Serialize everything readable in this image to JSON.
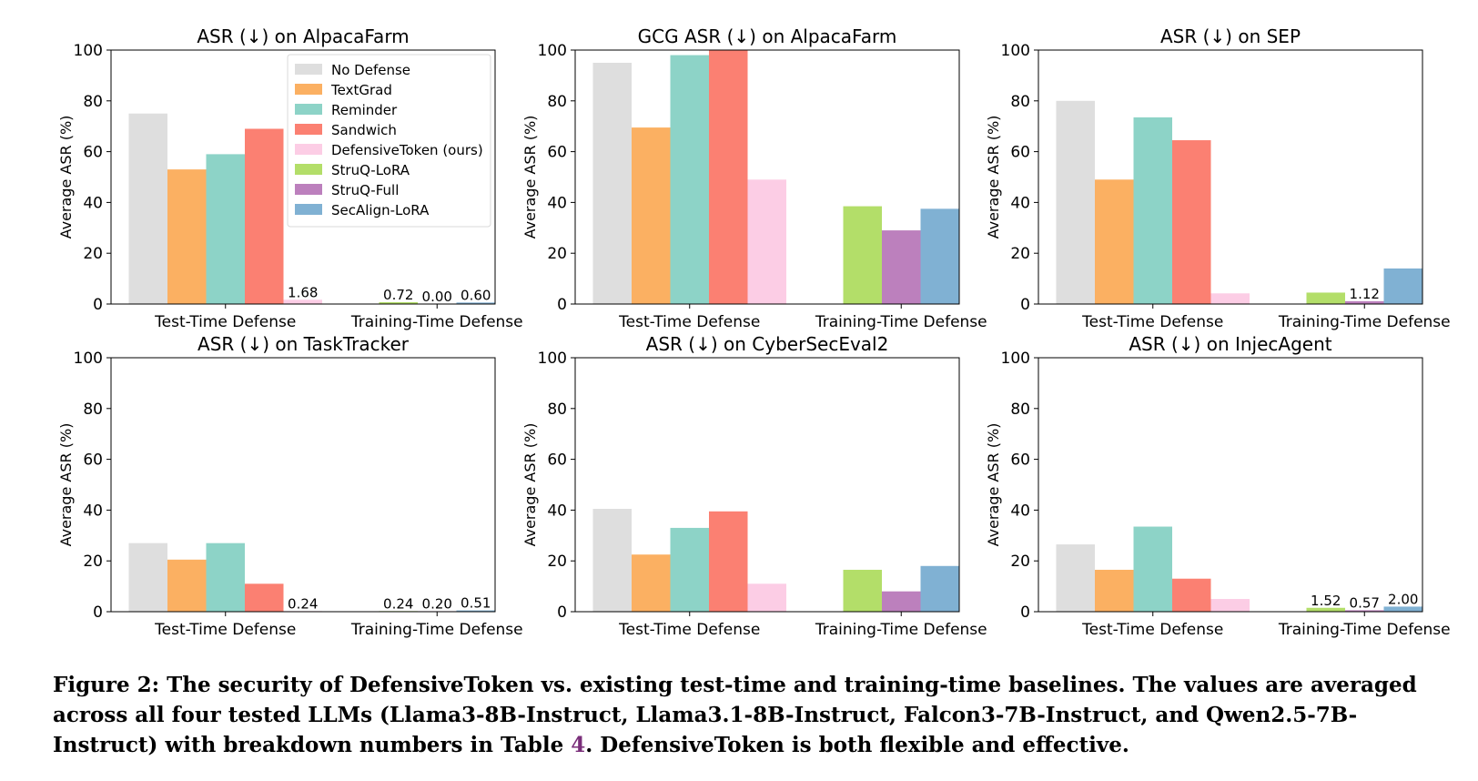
{
  "chart_data": [
    {
      "type": "bar",
      "title": "ASR (↓) on AlpacaFarm",
      "ylabel": "Average ASR (%)",
      "ylim": [
        0,
        100
      ],
      "yticks": [
        "0",
        "20",
        "40",
        "60",
        "80",
        "100"
      ],
      "groups": [
        {
          "label": "Test-Time Defense",
          "bars": [
            {
              "series": "No Defense",
              "value": 75
            },
            {
              "series": "TextGrad",
              "value": 53
            },
            {
              "series": "Reminder",
              "value": 59
            },
            {
              "series": "Sandwich",
              "value": 69
            },
            {
              "series": "DefensiveToken (ours)",
              "value": 1.68,
              "label": "1.68"
            }
          ]
        },
        {
          "label": "Training-Time Defense",
          "bars": [
            {
              "series": "StruQ-LoRA",
              "value": 0.72,
              "label": "0.72"
            },
            {
              "series": "StruQ-Full",
              "value": 0.0,
              "label": "0.00"
            },
            {
              "series": "SecAlign-LoRA",
              "value": 0.6,
              "label": "0.60"
            }
          ]
        }
      ],
      "legend": {
        "placement": "top-right",
        "entries": [
          "No Defense",
          "TextGrad",
          "Reminder",
          "Sandwich",
          "DefensiveToken (ours)",
          "StruQ-LoRA",
          "StruQ-Full",
          "SecAlign-LoRA"
        ]
      }
    },
    {
      "type": "bar",
      "title": "GCG ASR (↓) on AlpacaFarm",
      "ylabel": "Average ASR (%)",
      "ylim": [
        0,
        100
      ],
      "yticks": [
        "0",
        "20",
        "40",
        "60",
        "80",
        "100"
      ],
      "groups": [
        {
          "label": "Test-Time Defense",
          "bars": [
            {
              "series": "No Defense",
              "value": 95
            },
            {
              "series": "TextGrad",
              "value": 69.5
            },
            {
              "series": "Reminder",
              "value": 98
            },
            {
              "series": "Sandwich",
              "value": 100
            },
            {
              "series": "DefensiveToken (ours)",
              "value": 49
            }
          ]
        },
        {
          "label": "Training-Time Defense",
          "bars": [
            {
              "series": "StruQ-LoRA",
              "value": 38.5
            },
            {
              "series": "StruQ-Full",
              "value": 29
            },
            {
              "series": "SecAlign-LoRA",
              "value": 37.5
            }
          ]
        }
      ]
    },
    {
      "type": "bar",
      "title": "ASR (↓) on SEP",
      "ylabel": "Average ASR (%)",
      "ylim": [
        0,
        100
      ],
      "yticks": [
        "0",
        "20",
        "40",
        "60",
        "80",
        "100"
      ],
      "groups": [
        {
          "label": "Test-Time Defense",
          "bars": [
            {
              "series": "No Defense",
              "value": 80
            },
            {
              "series": "TextGrad",
              "value": 49
            },
            {
              "series": "Reminder",
              "value": 73.5
            },
            {
              "series": "Sandwich",
              "value": 64.5
            },
            {
              "series": "DefensiveToken (ours)",
              "value": 4.2
            }
          ]
        },
        {
          "label": "Training-Time Defense",
          "bars": [
            {
              "series": "StruQ-LoRA",
              "value": 4.5
            },
            {
              "series": "StruQ-Full",
              "value": 1.12,
              "label": "1.12"
            },
            {
              "series": "SecAlign-LoRA",
              "value": 14
            }
          ]
        }
      ]
    },
    {
      "type": "bar",
      "title": "ASR (↓) on TaskTracker",
      "ylabel": "Average ASR (%)",
      "ylim": [
        0,
        100
      ],
      "yticks": [
        "0",
        "20",
        "40",
        "60",
        "80",
        "100"
      ],
      "groups": [
        {
          "label": "Test-Time Defense",
          "bars": [
            {
              "series": "No Defense",
              "value": 27
            },
            {
              "series": "TextGrad",
              "value": 20.5
            },
            {
              "series": "Reminder",
              "value": 27
            },
            {
              "series": "Sandwich",
              "value": 11
            },
            {
              "series": "DefensiveToken (ours)",
              "value": 0.24,
              "label": "0.24"
            }
          ]
        },
        {
          "label": "Training-Time Defense",
          "bars": [
            {
              "series": "StruQ-LoRA",
              "value": 0.24,
              "label": "0.24"
            },
            {
              "series": "StruQ-Full",
              "value": 0.2,
              "label": "0.20"
            },
            {
              "series": "SecAlign-LoRA",
              "value": 0.51,
              "label": "0.51"
            }
          ]
        }
      ]
    },
    {
      "type": "bar",
      "title": "ASR (↓) on CyberSecEval2",
      "ylabel": "Average ASR (%)",
      "ylim": [
        0,
        100
      ],
      "yticks": [
        "0",
        "20",
        "40",
        "60",
        "80",
        "100"
      ],
      "groups": [
        {
          "label": "Test-Time Defense",
          "bars": [
            {
              "series": "No Defense",
              "value": 40.5
            },
            {
              "series": "TextGrad",
              "value": 22.5
            },
            {
              "series": "Reminder",
              "value": 33
            },
            {
              "series": "Sandwich",
              "value": 39.5
            },
            {
              "series": "DefensiveToken (ours)",
              "value": 11
            }
          ]
        },
        {
          "label": "Training-Time Defense",
          "bars": [
            {
              "series": "StruQ-LoRA",
              "value": 16.5
            },
            {
              "series": "StruQ-Full",
              "value": 8
            },
            {
              "series": "SecAlign-LoRA",
              "value": 18
            }
          ]
        }
      ]
    },
    {
      "type": "bar",
      "title": "ASR (↓) on InjecAgent",
      "ylabel": "Average ASR (%)",
      "ylim": [
        0,
        100
      ],
      "yticks": [
        "0",
        "20",
        "40",
        "60",
        "80",
        "100"
      ],
      "groups": [
        {
          "label": "Test-Time Defense",
          "bars": [
            {
              "series": "No Defense",
              "value": 26.5
            },
            {
              "series": "TextGrad",
              "value": 16.5
            },
            {
              "series": "Reminder",
              "value": 33.5
            },
            {
              "series": "Sandwich",
              "value": 13
            },
            {
              "series": "DefensiveToken (ours)",
              "value": 5
            }
          ]
        },
        {
          "label": "Training-Time Defense",
          "bars": [
            {
              "series": "StruQ-LoRA",
              "value": 1.52,
              "label": "1.52"
            },
            {
              "series": "StruQ-Full",
              "value": 0.57,
              "label": "0.57"
            },
            {
              "series": "SecAlign-LoRA",
              "value": 2.0,
              "label": "2.00"
            }
          ]
        }
      ]
    }
  ],
  "series_colors": {
    "No Defense": "#dedede",
    "TextGrad": "#fbb062",
    "Reminder": "#8dd3c7",
    "Sandwich": "#fb8072",
    "DefensiveToken (ours)": "#fccde5",
    "StruQ-LoRA": "#b3de69",
    "StruQ-Full": "#bc80bd",
    "SecAlign-LoRA": "#80b1d3"
  },
  "caption": {
    "before": "Figure 2: The security of DefensiveToken vs. existing test-time and training-time baselines. The values are averaged across all four tested LLMs (Llama3-8B-Instruct, Llama3.1-8B-Instruct, Falcon3-7B-Instruct, and Qwen2.5-7B-Instruct) with breakdown numbers in Table ",
    "ref": "4",
    "after": ". DefensiveToken is both flexible and effective."
  }
}
